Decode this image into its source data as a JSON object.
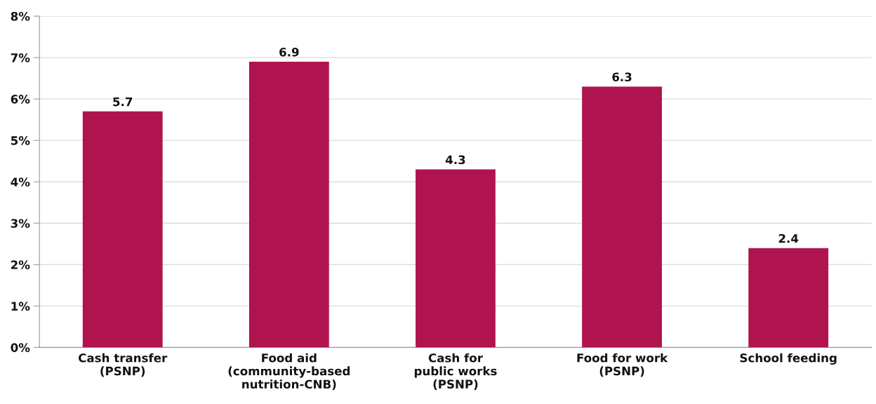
{
  "chart_data": {
    "type": "bar",
    "categories": [
      "Cash transfer\n(PSNP)",
      "Food aid\n(community-based\nnutrition-CNB)",
      "Cash for\npublic works\n(PSNP)",
      "Food for work\n(PSNP)",
      "School feeding"
    ],
    "values": [
      5.7,
      6.9,
      4.3,
      6.3,
      2.4
    ],
    "color": "#b0144f",
    "ylim": [
      0,
      8
    ],
    "yticks": [
      {
        "value": 0,
        "label": "0%"
      },
      {
        "value": 1,
        "label": "1%"
      },
      {
        "value": 2,
        "label": "2%"
      },
      {
        "value": 3,
        "label": "3%"
      },
      {
        "value": 4,
        "label": "4%"
      },
      {
        "value": 5,
        "label": "5%"
      },
      {
        "value": 6,
        "label": "6%"
      },
      {
        "value": 7,
        "label": "7%"
      },
      {
        "value": 8,
        "label": "8%"
      }
    ],
    "grid": "y",
    "data_labels": true
  }
}
